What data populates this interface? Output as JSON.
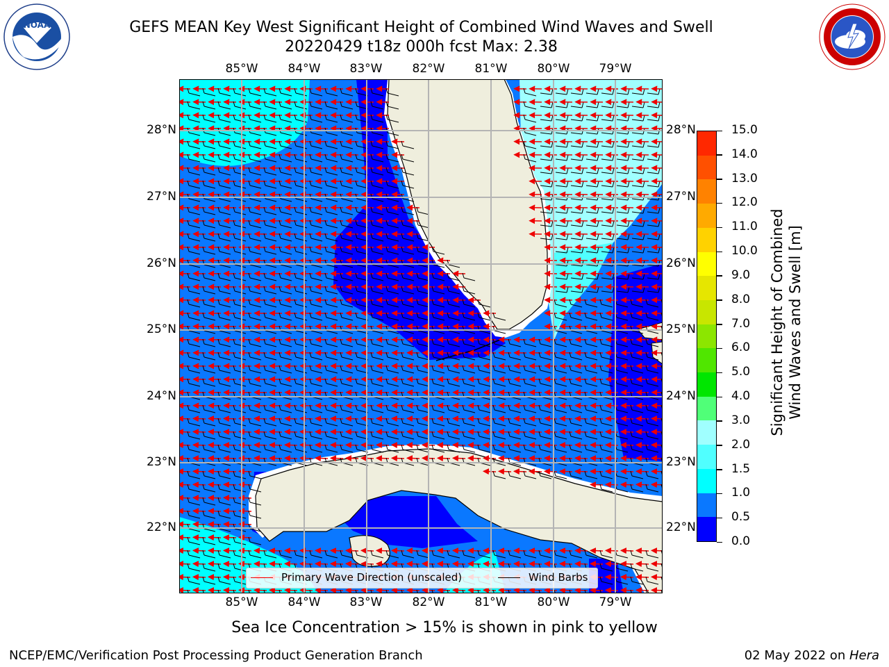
{
  "title": {
    "line1": "GEFS MEAN Key West Significant Height of Combined Wind Waves and Swell",
    "line2": "20220429 t18z 000h fcst    Max: 2.38"
  },
  "logos": {
    "left": "NOAA",
    "left_ring": "NATIONAL OCEANIC AND ATMOSPHERIC ADMINISTRATION · U.S. DEPARTMENT OF COMMERCE",
    "right_ring": "NATIONAL WEATHER SERVICE"
  },
  "map": {
    "lon_labels": [
      "85°W",
      "84°W",
      "83°W",
      "82°W",
      "81°W",
      "80°W",
      "79°W"
    ],
    "lat_labels": [
      "28°N",
      "27°N",
      "26°N",
      "25°N",
      "24°N",
      "23°N",
      "22°N"
    ],
    "legend": {
      "wave": "Primary Wave Direction (unscaled)",
      "barbs": "Wind Barbs"
    },
    "colors": {
      "land": "#efeedd",
      "coast": "#ffffff",
      "wave_arrow": "#ee0000",
      "barb": "#000000",
      "grid": "#b4b4b4"
    }
  },
  "colorbar": {
    "title_line1": "Significant Height of Combined",
    "title_line2": "Wind Waves and Swell [m]",
    "ticks": [
      "15.0",
      "14.0",
      "13.0",
      "12.0",
      "11.0",
      "10.0",
      "9.0",
      "8.0",
      "7.0",
      "6.0",
      "5.0",
      "4.0",
      "3.0",
      "2.0",
      "1.5",
      "1.0",
      "0.5",
      "0.0"
    ],
    "colors_bottom_to_top": [
      "#0000ff",
      "#0a78ff",
      "#00ffff",
      "#50ffff",
      "#a0ffff",
      "#50ff78",
      "#00e600",
      "#50e600",
      "#8ce600",
      "#c8e600",
      "#e6e600",
      "#ffff00",
      "#ffd200",
      "#ffaa00",
      "#ff8200",
      "#ff5000",
      "#ff2800"
    ]
  },
  "footer": {
    "note": "Sea Ice Concentration > 15% is shown in pink to yellow",
    "left": "NCEP/EMC/Verification Post Processing Product Generation Branch",
    "right_date": "02 May 2022 on ",
    "right_host": "Hera"
  }
}
